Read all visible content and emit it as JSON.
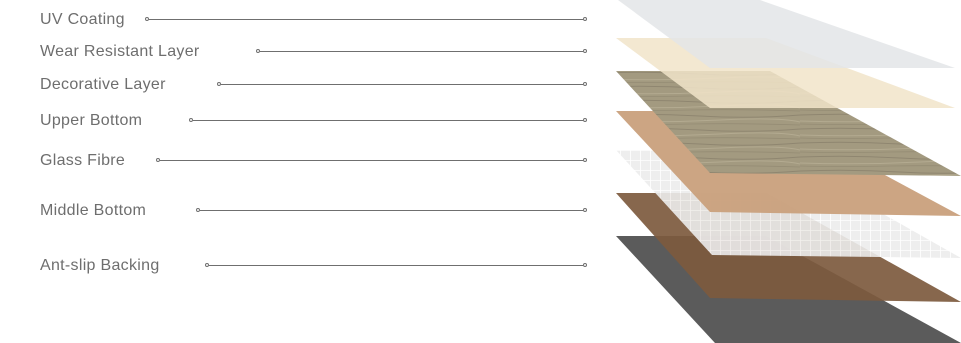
{
  "diagram": {
    "layers": [
      {
        "label": "UV Coating",
        "color": "#e3e5e8"
      },
      {
        "label": "Wear Resistant Layer",
        "color": "#f1e4c9"
      },
      {
        "label": "Decorative Layer",
        "color": "#a39a80"
      },
      {
        "label": "Upper Bottom",
        "color": "#c9a07c"
      },
      {
        "label": "Glass Fibre",
        "color": "#e6e6e6"
      },
      {
        "label": "Middle Bottom",
        "color": "#7d5a3e"
      },
      {
        "label": "Ant-slip Backing",
        "color": "#5b5b5b"
      }
    ]
  }
}
